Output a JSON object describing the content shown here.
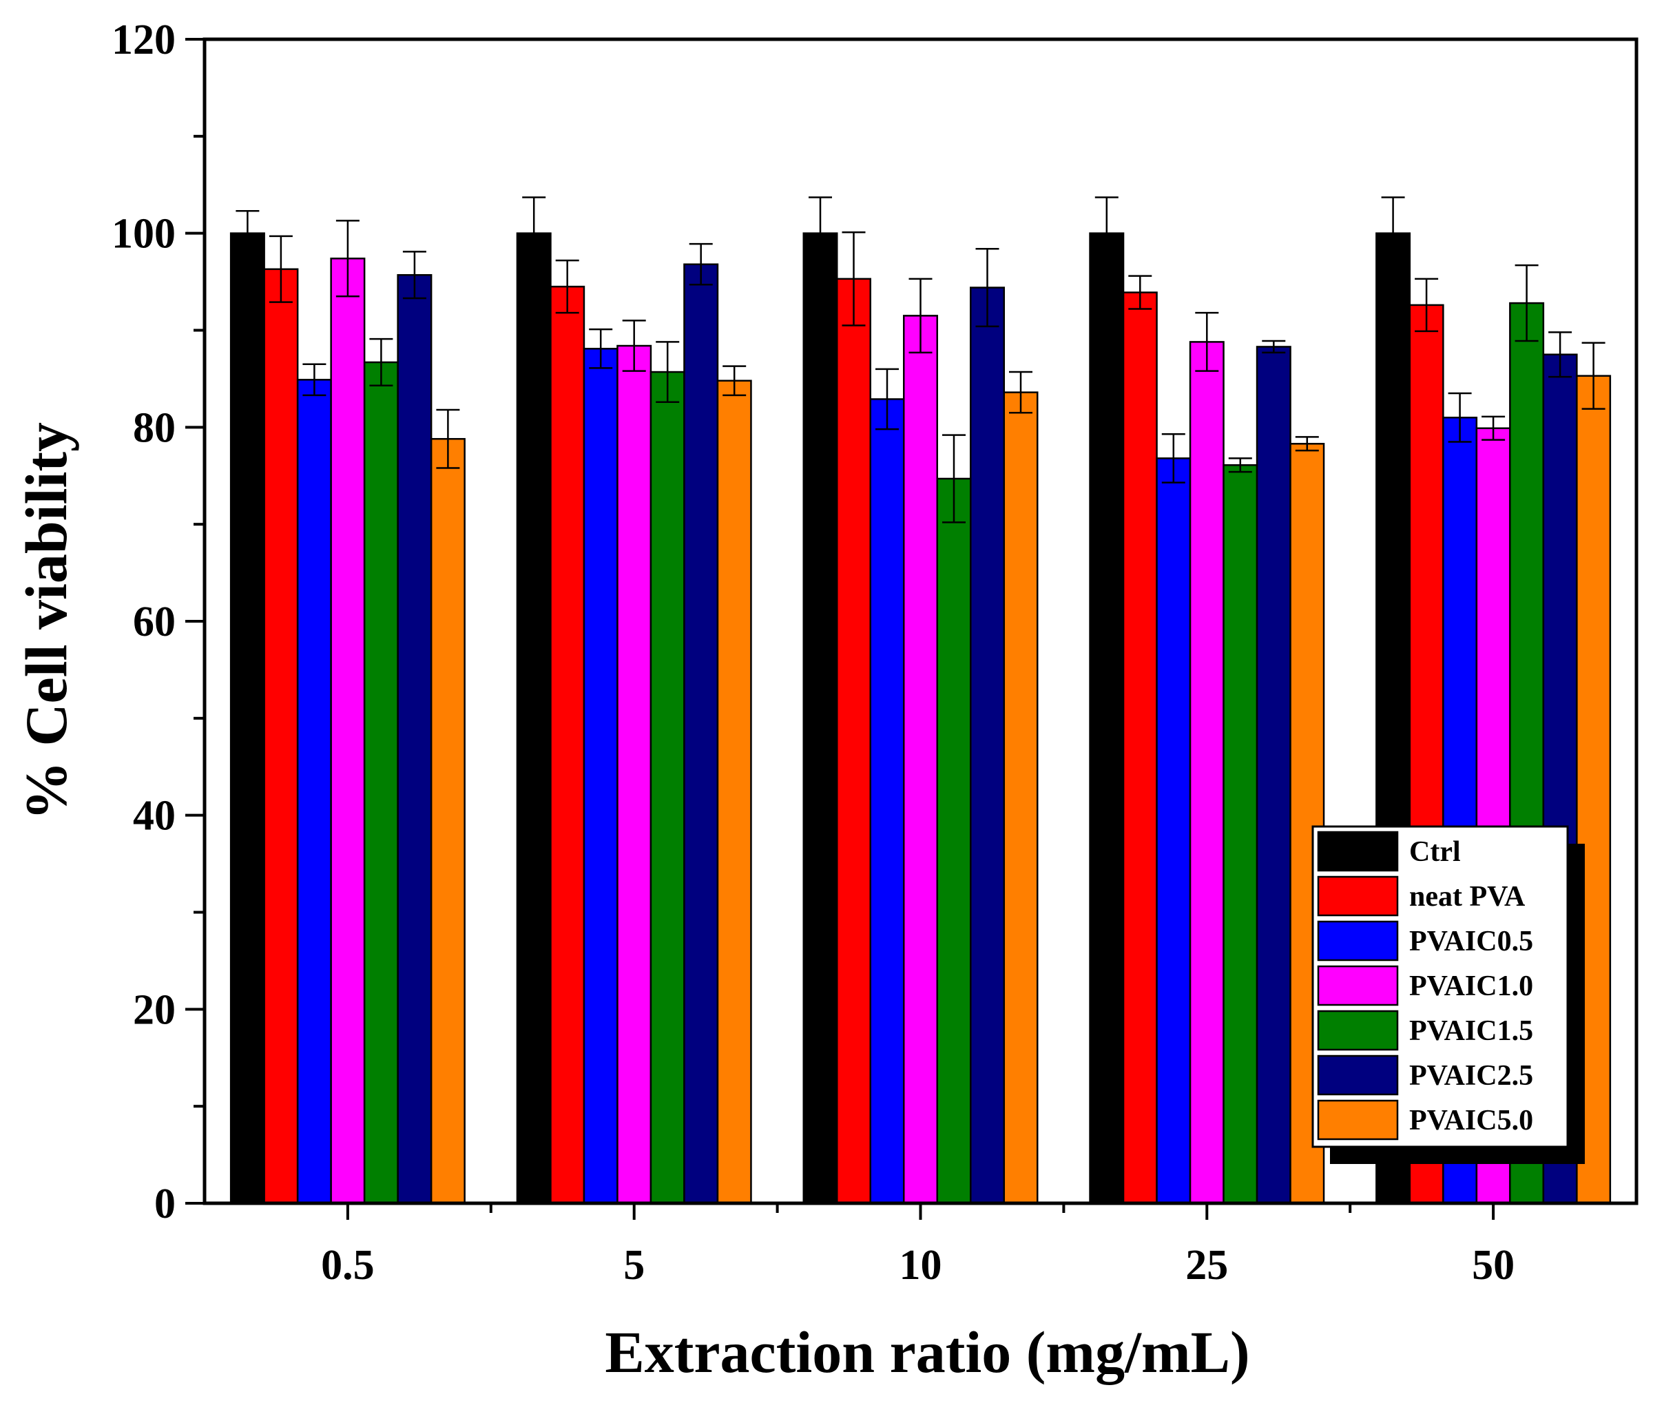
{
  "chart_data": {
    "type": "bar",
    "title": "",
    "xlabel": "Extraction ratio (mg/mL)",
    "ylabel": "% Cell viability",
    "ylim": [
      0,
      120
    ],
    "yticks": [
      "0",
      "20",
      "40",
      "60",
      "80",
      "100",
      "120"
    ],
    "categories": [
      "0.5",
      "5",
      "10",
      "25",
      "50"
    ],
    "legend_position": "bottom-right",
    "series": [
      {
        "name": "Ctrl",
        "color": "#000000",
        "values": [
          100,
          100,
          100,
          100,
          100
        ],
        "errors": [
          2.3,
          3.7,
          3.7,
          3.7,
          3.7
        ]
      },
      {
        "name": "neat PVA",
        "color": "#ff0000",
        "values": [
          96.3,
          94.5,
          95.3,
          93.9,
          92.6
        ],
        "errors": [
          3.4,
          2.7,
          4.8,
          1.7,
          2.7
        ]
      },
      {
        "name": "PVAIC0.5",
        "color": "#0000ff",
        "values": [
          84.9,
          88.1,
          82.9,
          76.8,
          81.0
        ],
        "errors": [
          1.6,
          2.0,
          3.1,
          2.5,
          2.5
        ]
      },
      {
        "name": "PVAIC1.0",
        "color": "#ff00ff",
        "values": [
          97.4,
          88.4,
          91.5,
          88.8,
          79.9
        ],
        "errors": [
          3.9,
          2.6,
          3.8,
          3.0,
          1.2
        ]
      },
      {
        "name": "PVAIC1.5",
        "color": "#007f00",
        "values": [
          86.7,
          85.7,
          74.7,
          76.1,
          92.8
        ],
        "errors": [
          2.4,
          3.1,
          4.5,
          0.7,
          3.9
        ]
      },
      {
        "name": "PVAIC2.5",
        "color": "#00007f",
        "values": [
          95.7,
          96.8,
          94.4,
          88.3,
          87.5
        ],
        "errors": [
          2.4,
          2.1,
          4.0,
          0.6,
          2.3
        ]
      },
      {
        "name": "PVAIC5.0",
        "color": "#ff7f00",
        "values": [
          78.8,
          84.8,
          83.6,
          78.3,
          85.3
        ],
        "errors": [
          3.0,
          1.5,
          2.1,
          0.7,
          3.4
        ]
      }
    ]
  }
}
